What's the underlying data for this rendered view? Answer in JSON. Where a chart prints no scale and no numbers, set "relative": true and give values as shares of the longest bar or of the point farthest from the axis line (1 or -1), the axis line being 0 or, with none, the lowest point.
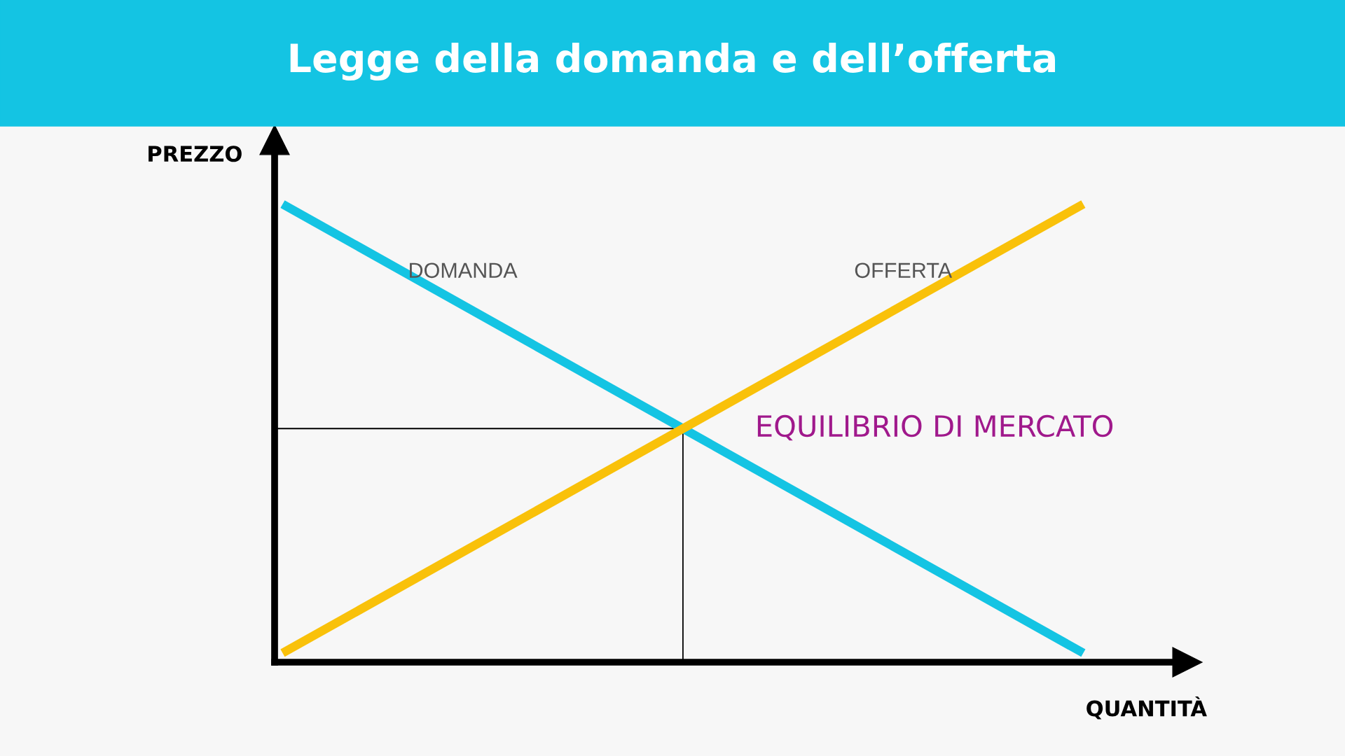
{
  "chart_data": {
    "type": "line",
    "title": "Legge della domanda e dell’offerta",
    "xlabel": "QUANTITÀ",
    "ylabel": "PREZZO",
    "relative": true,
    "categories": [
      null,
      null,
      null
    ],
    "series": [
      {
        "name": "DOMANDA",
        "color": "#14c4e3",
        "values": [
          1,
          0.51,
          0.02
        ]
      },
      {
        "name": "OFFERTA",
        "color": "#f9c10a",
        "values": [
          0.02,
          0.51,
          1
        ]
      }
    ],
    "ref_lines": [
      {
        "axis": "y",
        "value": 0.51,
        "color": "#000000"
      }
    ],
    "annotations": [
      "EQUILIBRIO DI MERCATO"
    ],
    "legend": false,
    "marker": "none",
    "line_style": "solid"
  }
}
